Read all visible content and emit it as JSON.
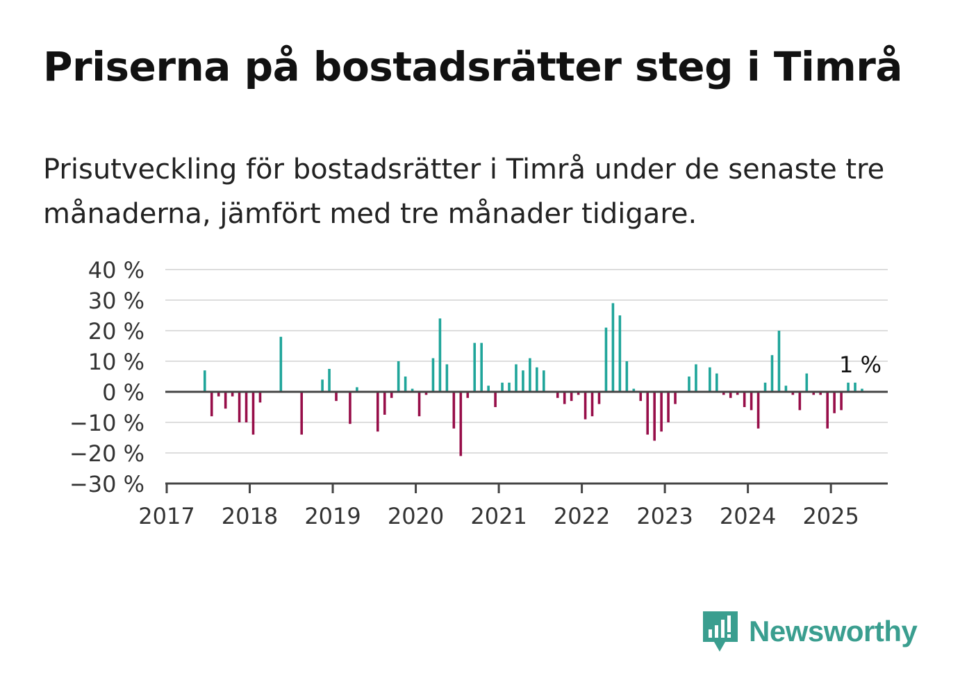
{
  "title": "Priserna på bostadsrätter steg i Timrå",
  "subtitle": "Prisutveckling för bostadsrätter i Timrå under de senaste tre månaderna, jämfört med tre månader tidigare.",
  "brand": {
    "name": "Newsworthy",
    "logo_icon": "newsworthy-logo-icon"
  },
  "colors": {
    "positive": "#1fa59a",
    "negative": "#970e49",
    "grid": "#dddddd",
    "axis": "#444444"
  },
  "chart_data": {
    "type": "bar",
    "x_start": "2017-01",
    "x_ticks": [
      "2017",
      "2018",
      "2019",
      "2020",
      "2021",
      "2022",
      "2023",
      "2024",
      "2025"
    ],
    "y_ticks": [
      "40 %",
      "30 %",
      "20 %",
      "10 %",
      "0 %",
      "−10 %",
      "−20 %",
      "−30 %"
    ],
    "ylim": [
      -30,
      40
    ],
    "unit": "%",
    "annotation": {
      "label": "1 %",
      "target": "last"
    },
    "values": [
      null,
      null,
      null,
      null,
      null,
      7,
      -8,
      -1.5,
      -5.5,
      -1.5,
      -10,
      -10,
      -14,
      -3.5,
      null,
      null,
      18,
      null,
      null,
      -14,
      null,
      null,
      4,
      7.5,
      -3,
      null,
      -10.5,
      1.5,
      null,
      null,
      -13,
      -7.5,
      -2,
      10,
      5,
      1,
      -8,
      -1,
      11,
      24,
      9,
      -12,
      -21,
      -2,
      16,
      16,
      2,
      -5,
      3,
      3,
      9,
      7,
      11,
      8,
      7,
      null,
      -2,
      -4,
      -3,
      -1,
      -9,
      -8,
      -4,
      21,
      29,
      25,
      10,
      1,
      -3,
      -14,
      -16,
      -13,
      -10,
      -4,
      null,
      5,
      9,
      null,
      8,
      6,
      -1,
      -2,
      -1,
      -5,
      -6,
      -12,
      3,
      12,
      20,
      2,
      -1,
      -6,
      6,
      -1,
      -1,
      -12,
      -7,
      -6,
      3,
      3,
      1
    ]
  }
}
